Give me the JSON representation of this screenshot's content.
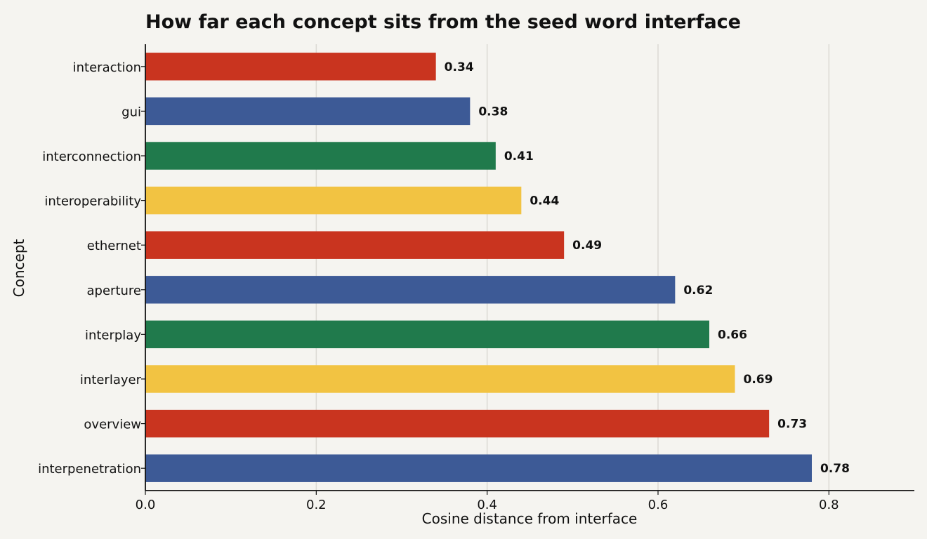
{
  "chart_data": {
    "type": "bar",
    "orientation": "horizontal",
    "title": "How far each concept sits from the seed word interface",
    "xlabel": "Cosine distance from interface",
    "ylabel": "Concept",
    "xlim": [
      0,
      0.9
    ],
    "xticks": [
      "0.0",
      "0.2",
      "0.4",
      "0.6",
      "0.8"
    ],
    "xtick_values": [
      0,
      0.2,
      0.4,
      0.6,
      0.8
    ],
    "grid": "vertical",
    "categories": [
      "interaction",
      "gui",
      "interconnection",
      "interoperability",
      "ethernet",
      "aperture",
      "interplay",
      "interlayer",
      "overview",
      "interpenetration"
    ],
    "values": [
      0.34,
      0.38,
      0.41,
      0.44,
      0.49,
      0.62,
      0.66,
      0.69,
      0.73,
      0.78
    ],
    "data_labels": [
      "0.34",
      "0.38",
      "0.41",
      "0.44",
      "0.49",
      "0.62",
      "0.66",
      "0.69",
      "0.73",
      "0.78"
    ],
    "colors": [
      "#c9341f",
      "#3d5a96",
      "#207a4c",
      "#f2c342",
      "#c9341f",
      "#3d5a96",
      "#207a4c",
      "#f2c342",
      "#c9341f",
      "#3d5a96"
    ],
    "grid_color": "#dcdad4",
    "axis_color": "#111111"
  }
}
